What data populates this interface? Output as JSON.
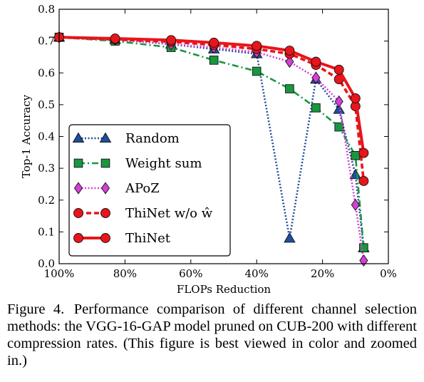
{
  "chart_data": {
    "type": "line",
    "xlabel": "FLOPs Reduction",
    "ylabel": "Top-1 Accuracy",
    "xlim": [
      100,
      0
    ],
    "ylim": [
      0.0,
      0.8
    ],
    "x_ticks": [
      "100%",
      "80%",
      "60%",
      "40%",
      "20%",
      "0%"
    ],
    "y_ticks": [
      "0.0",
      "0.1",
      "0.2",
      "0.3",
      "0.4",
      "0.5",
      "0.6",
      "0.7",
      "0.8"
    ],
    "grid": false,
    "legend_position": "lower-left",
    "series": [
      {
        "name": "Random",
        "color": "#1f4e9c",
        "line_style": "dotted",
        "marker": "triangle",
        "x": [
          100,
          83,
          66,
          53,
          40,
          30,
          22,
          15,
          10,
          7.5
        ],
        "y": [
          0.712,
          0.705,
          0.69,
          0.675,
          0.66,
          0.08,
          0.58,
          0.485,
          0.28,
          0.05
        ]
      },
      {
        "name": "Weight sum",
        "color": "#1a9640",
        "line_style": "dashdot",
        "marker": "square",
        "x": [
          100,
          83,
          66,
          53,
          40,
          30,
          22,
          15,
          10,
          7.5
        ],
        "y": [
          0.712,
          0.7,
          0.68,
          0.64,
          0.605,
          0.55,
          0.49,
          0.43,
          0.34,
          0.05
        ]
      },
      {
        "name": "APoZ",
        "color": "#d63fd6",
        "line_style": "dotted",
        "marker": "diamond",
        "x": [
          100,
          83,
          66,
          53,
          40,
          30,
          22,
          15,
          10,
          7.5
        ],
        "y": [
          0.712,
          0.705,
          0.69,
          0.68,
          0.665,
          0.635,
          0.585,
          0.51,
          0.185,
          0.01
        ]
      },
      {
        "name": "ThiNet w/o ŵ",
        "color": "#e8151b",
        "line_style": "dashed",
        "marker": "circle",
        "x": [
          100,
          83,
          66,
          53,
          40,
          30,
          22,
          15,
          10,
          7.5
        ],
        "y": [
          0.712,
          0.705,
          0.698,
          0.688,
          0.675,
          0.66,
          0.625,
          0.58,
          0.495,
          0.26
        ]
      },
      {
        "name": "ThiNet",
        "color": "#e8151b",
        "line_style": "solid",
        "marker": "circle",
        "x": [
          100,
          83,
          66,
          53,
          40,
          30,
          22,
          15,
          10,
          7.5
        ],
        "y": [
          0.712,
          0.708,
          0.703,
          0.695,
          0.685,
          0.67,
          0.635,
          0.61,
          0.52,
          0.348
        ]
      }
    ]
  },
  "caption": {
    "label": "Figure 4.",
    "text": "Performance comparison of different channel selection methods: the VGG-16-GAP model pruned on CUB-200 with different compression rates. (This figure is best viewed in color and zoomed in.)"
  }
}
